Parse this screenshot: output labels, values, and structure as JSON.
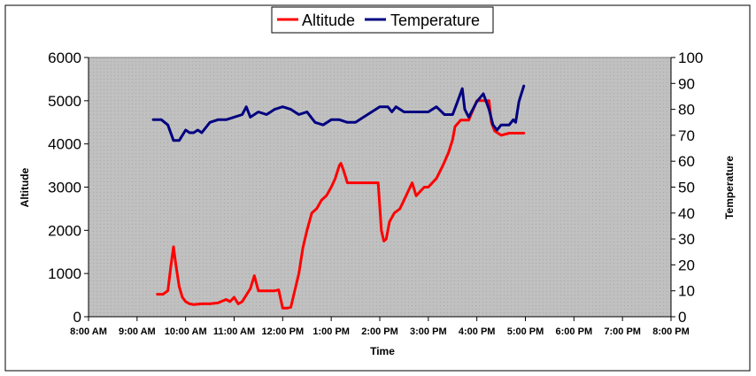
{
  "chart_data": {
    "type": "line",
    "xlabel": "Time",
    "ylabel_left": "Altitude",
    "ylabel_right": "Temperature",
    "x_ticks": [
      "8:00 AM",
      "9:00 AM",
      "10:00 AM",
      "11:00 AM",
      "12:00 PM",
      "1:00 PM",
      "2:00 PM",
      "3:00 PM",
      "4:00 PM",
      "5:00 PM",
      "6:00 PM",
      "7:00 PM",
      "8:00 PM"
    ],
    "xlim": [
      "8:00 AM",
      "8:00 PM"
    ],
    "y_left_ticks": [
      "0",
      "1000",
      "2000",
      "3000",
      "4000",
      "5000",
      "6000"
    ],
    "y_left_lim": [
      0,
      6000
    ],
    "y_right_ticks": [
      "0",
      "10",
      "20",
      "30",
      "40",
      "50",
      "60",
      "70",
      "80",
      "90",
      "100"
    ],
    "y_right_lim": [
      0,
      100
    ],
    "legend_position": "top-center",
    "plot_background": "#c0c0c0",
    "series": [
      {
        "name": "Altitude",
        "axis": "left",
        "color": "#ff0000",
        "x": [
          "9:25 AM",
          "9:32 AM",
          "9:38 AM",
          "9:42 AM",
          "9:45 AM",
          "9:48 AM",
          "9:52 AM",
          "9:56 AM",
          "10:00 AM",
          "10:05 AM",
          "10:10 AM",
          "10:20 AM",
          "10:30 AM",
          "10:40 AM",
          "10:50 AM",
          "10:55 AM",
          "11:00 AM",
          "11:05 AM",
          "11:10 AM",
          "11:15 AM",
          "11:20 AM",
          "11:25 AM",
          "11:30 AM",
          "11:35 AM",
          "11:40 AM",
          "11:45 AM",
          "11:50 AM",
          "11:55 AM",
          "12:00 PM",
          "12:03 PM",
          "12:06 PM",
          "12:10 PM",
          "12:20 PM",
          "12:25 PM",
          "12:30 PM",
          "12:36 PM",
          "12:42 PM",
          "12:48 PM",
          "12:54 PM",
          "1:00 PM",
          "1:05 PM",
          "1:10 PM",
          "1:12 PM",
          "1:15 PM",
          "1:20 PM",
          "1:40 PM",
          "1:58 PM",
          "2:02 PM",
          "2:05 PM",
          "2:08 PM",
          "2:12 PM",
          "2:18 PM",
          "2:25 PM",
          "2:30 PM",
          "2:35 PM",
          "2:40 PM",
          "2:45 PM",
          "2:50 PM",
          "2:55 PM",
          "3:00 PM",
          "3:10 PM",
          "3:18 PM",
          "3:25 PM",
          "3:30 PM",
          "3:33 PM",
          "3:40 PM",
          "3:50 PM",
          "4:00 PM",
          "4:10 PM",
          "4:15 PM",
          "4:18 PM",
          "4:22 PM",
          "4:30 PM",
          "4:40 PM",
          "4:50 PM",
          "4:58 PM"
        ],
        "values": [
          520,
          520,
          600,
          1200,
          1620,
          1200,
          700,
          450,
          350,
          300,
          280,
          300,
          300,
          320,
          400,
          350,
          450,
          300,
          350,
          500,
          650,
          950,
          600,
          600,
          600,
          600,
          600,
          620,
          200,
          200,
          200,
          220,
          1000,
          1600,
          2000,
          2400,
          2500,
          2700,
          2800,
          3000,
          3200,
          3500,
          3550,
          3400,
          3100,
          3100,
          3100,
          2000,
          1750,
          1800,
          2200,
          2400,
          2500,
          2700,
          2900,
          3100,
          2800,
          2900,
          3000,
          3000,
          3200,
          3500,
          3800,
          4100,
          4400,
          4550,
          4550,
          5000,
          5000,
          5000,
          4500,
          4300,
          4200,
          4250,
          4250,
          4250
        ]
      },
      {
        "name": "Temperature",
        "axis": "right",
        "color": "#000080",
        "x": [
          "9:20 AM",
          "9:30 AM",
          "9:38 AM",
          "9:45 AM",
          "9:52 AM",
          "10:00 AM",
          "10:05 AM",
          "10:10 AM",
          "10:15 AM",
          "10:20 AM",
          "10:30 AM",
          "10:40 AM",
          "10:50 AM",
          "11:00 AM",
          "11:10 AM",
          "11:15 AM",
          "11:20 AM",
          "11:30 AM",
          "11:40 AM",
          "11:50 AM",
          "12:00 PM",
          "12:10 PM",
          "12:20 PM",
          "12:30 PM",
          "12:40 PM",
          "12:50 PM",
          "1:00 PM",
          "1:10 PM",
          "1:20 PM",
          "1:30 PM",
          "1:40 PM",
          "1:50 PM",
          "1:55 PM",
          "2:00 PM",
          "2:10 PM",
          "2:15 PM",
          "2:20 PM",
          "2:30 PM",
          "2:40 PM",
          "2:50 PM",
          "3:00 PM",
          "3:10 PM",
          "3:20 PM",
          "3:30 PM",
          "3:35 PM",
          "3:42 PM",
          "3:45 PM",
          "3:50 PM",
          "4:00 PM",
          "4:08 PM",
          "4:15 PM",
          "4:20 PM",
          "4:25 PM",
          "4:30 PM",
          "4:40 PM",
          "4:45 PM",
          "4:48 PM",
          "4:52 PM",
          "4:58 PM"
        ],
        "values": [
          76,
          76,
          74,
          68,
          68,
          72,
          71,
          71,
          72,
          71,
          75,
          76,
          76,
          77,
          78,
          81,
          77,
          79,
          78,
          80,
          81,
          80,
          78,
          79,
          75,
          74,
          76,
          76,
          75,
          75,
          77,
          79,
          80,
          81,
          81,
          79,
          81,
          79,
          79,
          79,
          79,
          81,
          78,
          78,
          82,
          88,
          80,
          77,
          83,
          86,
          80,
          74,
          72,
          74,
          74,
          76,
          75,
          83,
          89
        ]
      }
    ]
  }
}
